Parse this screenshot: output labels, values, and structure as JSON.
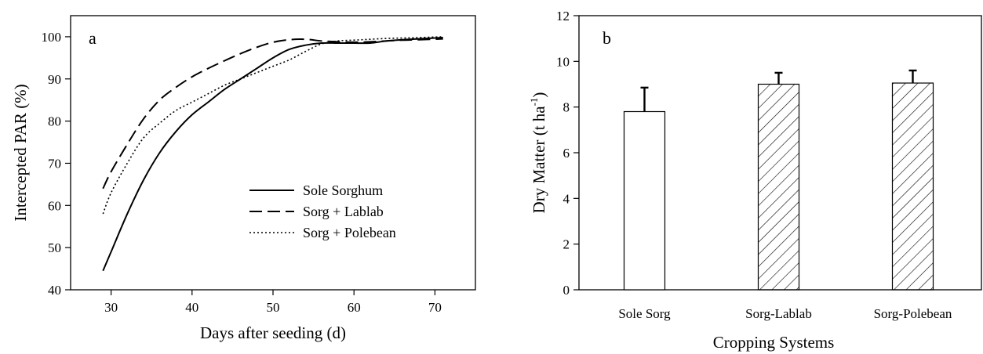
{
  "chart_data": [
    {
      "type": "line",
      "panel_label": "a",
      "xlabel": "Days after seeding (d)",
      "ylabel": "Intercepted PAR (%)",
      "xlim": [
        25,
        75
      ],
      "ylim": [
        40,
        105
      ],
      "xticks": [
        30,
        40,
        50,
        60,
        70
      ],
      "yticks": [
        40,
        50,
        60,
        70,
        80,
        90,
        100
      ],
      "grid": false,
      "legend_position": "lower-right",
      "series": [
        {
          "name": "Sole Sorghum",
          "style": "solid",
          "x": [
            29,
            30,
            32,
            34,
            36,
            38,
            40,
            42,
            44,
            46,
            48,
            50,
            52,
            54,
            56,
            58,
            60,
            62,
            64,
            66,
            68,
            71
          ],
          "y": [
            44.5,
            49,
            58,
            66,
            72.5,
            77.5,
            81.5,
            84.5,
            87.5,
            90,
            92.5,
            95,
            97,
            98,
            98.5,
            98.5,
            98.5,
            98.5,
            99,
            99.3,
            99.5,
            99.8
          ]
        },
        {
          "name": "Sorg + Lablab",
          "style": "dashed",
          "x": [
            29,
            30,
            32,
            34,
            36,
            38,
            40,
            42,
            44,
            46,
            48,
            50,
            52,
            54,
            56,
            58,
            60,
            62,
            64,
            66,
            68,
            71
          ],
          "y": [
            64,
            68,
            74.5,
            80.5,
            85,
            88,
            90.5,
            92.5,
            94.3,
            96,
            97.5,
            98.7,
            99.3,
            99.4,
            99,
            98.8,
            98.7,
            98.8,
            99,
            99.2,
            99.3,
            99.5
          ]
        },
        {
          "name": "Sorg + Polebean",
          "style": "dotted",
          "x": [
            29,
            30,
            32,
            34,
            36,
            38,
            40,
            42,
            44,
            46,
            48,
            50,
            52,
            54,
            56,
            58,
            60,
            62,
            64,
            66,
            68,
            71
          ],
          "y": [
            58,
            63,
            70,
            76,
            79.5,
            82.5,
            84.5,
            86.5,
            88.5,
            90,
            91.5,
            93,
            94.5,
            96.5,
            98.3,
            99,
            99.2,
            99.4,
            99.6,
            99.7,
            99.8,
            100
          ]
        }
      ]
    },
    {
      "type": "bar",
      "panel_label": "b",
      "xlabel": "Cropping Systems",
      "ylabel_main": "Dry Matter (t ha",
      "ylabel_sup": "-1",
      "ylabel_end": ")",
      "ylim": [
        0,
        12
      ],
      "yticks": [
        0,
        2,
        4,
        6,
        8,
        10,
        12
      ],
      "grid": false,
      "categories": [
        "Sole Sorg",
        "Sorg-Lablab",
        "Sorg-Polebean"
      ],
      "values": [
        7.8,
        9.0,
        9.05
      ],
      "error_plus": [
        1.05,
        0.5,
        0.55
      ],
      "fill": [
        "open",
        "hatched",
        "hatched"
      ]
    }
  ]
}
